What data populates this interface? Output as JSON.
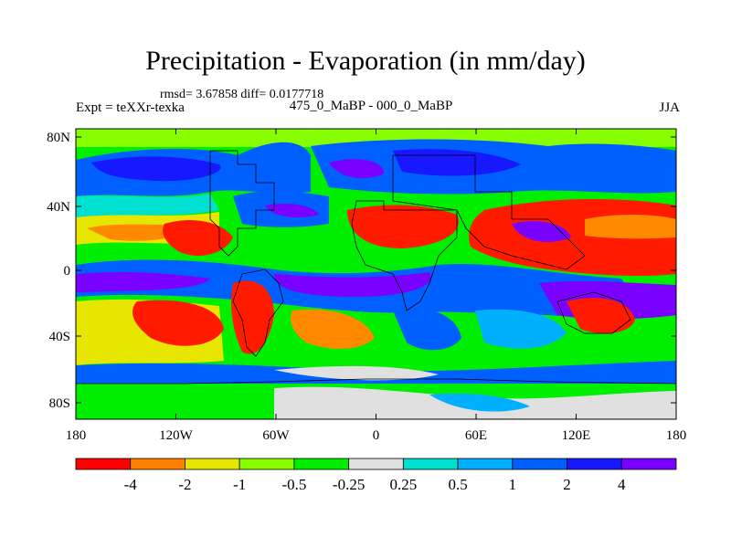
{
  "title": "Precipitation - Evaporation (in mm/day)",
  "stats": "rmsd= 3.67858 diff= 0.0177718",
  "expt": "Expt = teXXr-texka",
  "comparison": "475_0_MaBP - 000_0_MaBP",
  "season": "JJA",
  "lat_ticks": [
    "80N",
    "40N",
    "0",
    "40S",
    "80S"
  ],
  "lon_ticks": [
    "180",
    "120W",
    "60W",
    "0",
    "60E",
    "120E",
    "180"
  ],
  "colorbar": {
    "colors": [
      "#ff0000",
      "#ff8000",
      "#e6e600",
      "#88ff00",
      "#00ee00",
      "#e0e0e0",
      "#00e0d0",
      "#00b0ff",
      "#0060ff",
      "#1818ff",
      "#7a00ff"
    ],
    "labels": [
      "-4",
      "-2",
      "-1",
      "-0.5",
      "-0.25",
      "0.25",
      "0.5",
      "1",
      "2",
      "4"
    ]
  },
  "map_colors": {
    "red": "#ff1a00",
    "orange": "#ff8a00",
    "yellow": "#e6e600",
    "lightgreen": "#88ff00",
    "green": "#00ee00",
    "gray": "#e0e0e0",
    "cyan": "#00e0d0",
    "lightblue": "#00b0ff",
    "blue": "#0060ff",
    "darkblue": "#1818ff",
    "purple": "#7a00ff"
  }
}
